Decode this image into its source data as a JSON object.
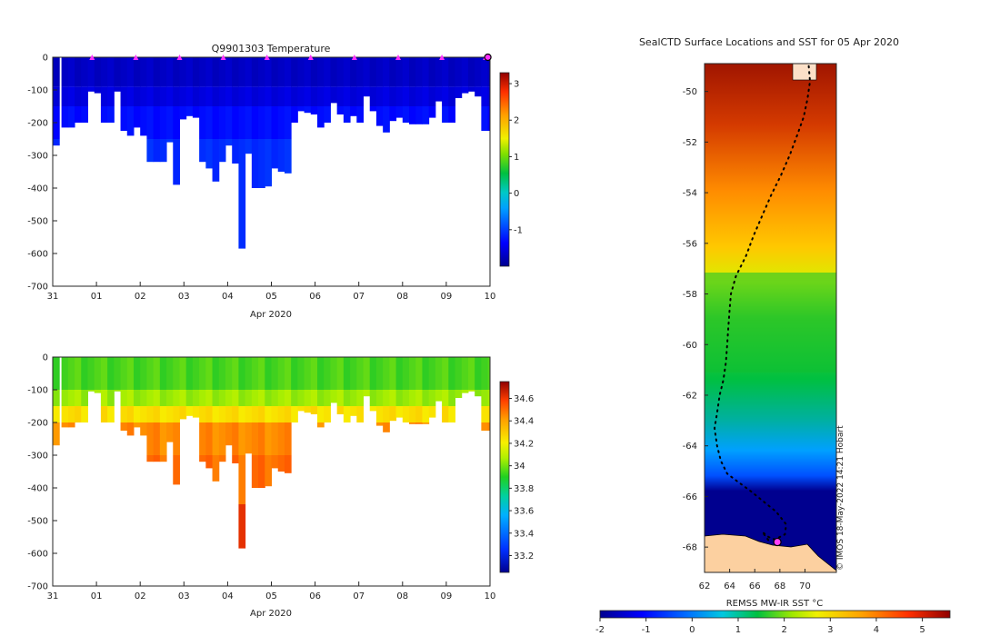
{
  "chart_data": [
    {
      "type": "heatmap",
      "title": "Q9901303  Temperature",
      "xlabel": "Apr 2020",
      "ylabel": "",
      "x_tick_labels": [
        "31",
        "01",
        "02",
        "03",
        "04",
        "05",
        "06",
        "07",
        "08",
        "09",
        "10"
      ],
      "ylim": [
        -700,
        0
      ],
      "y_ticks": [
        0,
        -100,
        -200,
        -300,
        -400,
        -500,
        -600,
        -700
      ],
      "colorbar": {
        "min": -2,
        "max": 3.3,
        "ticks": [
          3,
          2,
          1,
          0,
          -1
        ]
      },
      "profile_times_days": [
        0.9,
        1.9,
        2.9,
        3.9,
        4.9,
        5.9,
        6.9,
        7.9,
        8.9,
        9.9
      ],
      "profile_days": [
        0.0,
        0.2,
        0.35,
        0.5,
        0.65,
        0.8,
        0.95,
        1.1,
        1.25,
        1.4,
        1.55,
        1.7,
        1.85,
        2.0,
        2.15,
        2.3,
        2.45,
        2.6,
        2.75,
        2.9,
        3.05,
        3.2,
        3.35,
        3.5,
        3.65,
        3.8,
        3.95,
        4.1,
        4.25,
        4.4,
        4.55,
        4.7,
        4.85,
        5.0,
        5.15,
        5.3,
        5.45,
        5.6,
        5.75,
        5.9,
        6.05,
        6.2,
        6.35,
        6.5,
        6.65,
        6.8,
        6.95,
        7.1,
        7.25,
        7.4,
        7.55,
        7.7,
        7.85,
        8.0,
        8.15,
        8.3,
        8.45,
        8.6,
        8.75,
        8.9,
        9.05,
        9.2,
        9.35,
        9.5,
        9.65,
        9.8,
        9.95
      ],
      "profile_max_depths": [
        270,
        215,
        215,
        200,
        200,
        105,
        110,
        200,
        200,
        105,
        225,
        240,
        215,
        240,
        320,
        320,
        320,
        260,
        390,
        190,
        180,
        185,
        320,
        340,
        380,
        320,
        270,
        325,
        585,
        295,
        400,
        400,
        395,
        340,
        350,
        355,
        200,
        165,
        170,
        175,
        215,
        200,
        140,
        175,
        200,
        180,
        200,
        120,
        165,
        210,
        230,
        195,
        185,
        200,
        205,
        205,
        205,
        185,
        135,
        200,
        200,
        125,
        110,
        105,
        120,
        225,
        225
      ],
      "values_temperature": [
        -1.6,
        -1.5,
        -1.7,
        -1.4,
        -1.3,
        -1.1
      ]
    },
    {
      "type": "heatmap",
      "title": "",
      "xlabel": "Apr 2020",
      "ylabel": "",
      "x_tick_labels": [
        "31",
        "01",
        "02",
        "03",
        "04",
        "05",
        "06",
        "07",
        "08",
        "09",
        "10"
      ],
      "ylim": [
        -700,
        0
      ],
      "y_ticks": [
        0,
        -100,
        -200,
        -300,
        -400,
        -500,
        -600,
        -700
      ],
      "colorbar": {
        "min": 33.05,
        "max": 34.75,
        "ticks": [
          "34.6",
          "34.4",
          "34.2",
          "34",
          "33.8",
          "33.6",
          "33.4",
          "33.2"
        ]
      },
      "salinity_layers": [
        [
          0,
          100,
          33.95
        ],
        [
          100,
          150,
          34.05
        ],
        [
          150,
          200,
          34.25
        ],
        [
          200,
          300,
          34.45
        ],
        [
          300,
          450,
          34.5
        ],
        [
          450,
          600,
          34.65
        ]
      ]
    },
    {
      "type": "heatmap",
      "title": "SealCTD Surface Locations and SST for 05 Apr 2020",
      "xlabel": "",
      "x_ticks": [
        62,
        64,
        66,
        68,
        70
      ],
      "xlim": [
        62,
        72.5
      ],
      "y_ticks": [
        -50,
        -52,
        -54,
        -56,
        -58,
        -60,
        -62,
        -64,
        -66,
        -68
      ],
      "ylim": [
        -69,
        -48.9
      ],
      "colorbar": {
        "label": "REMSS MW-IR SST °C",
        "min": -2,
        "max": 5.6,
        "ticks": [
          -2,
          -1,
          0,
          1,
          2,
          3,
          4,
          5
        ]
      },
      "watermark": "© IMOS 18-May-2022 14:21 Hobart",
      "track": [
        [
          70.3,
          -49.0
        ],
        [
          70.4,
          -49.6
        ],
        [
          70.2,
          -50.3
        ],
        [
          69.9,
          -51.0
        ],
        [
          69.4,
          -51.7
        ],
        [
          68.8,
          -52.5
        ],
        [
          68.1,
          -53.3
        ],
        [
          67.3,
          -54.1
        ],
        [
          66.6,
          -54.9
        ],
        [
          65.9,
          -55.7
        ],
        [
          65.3,
          -56.5
        ],
        [
          64.5,
          -57.3
        ],
        [
          64.1,
          -58.0
        ],
        [
          64.0,
          -58.6
        ],
        [
          63.9,
          -59.3
        ],
        [
          63.8,
          -60.0
        ],
        [
          63.7,
          -60.7
        ],
        [
          63.5,
          -61.4
        ],
        [
          63.2,
          -62.0
        ],
        [
          63.0,
          -62.7
        ],
        [
          62.8,
          -63.3
        ],
        [
          63.0,
          -64.0
        ],
        [
          63.3,
          -64.6
        ],
        [
          63.8,
          -65.1
        ],
        [
          64.6,
          -65.4
        ],
        [
          65.7,
          -65.8
        ],
        [
          66.7,
          -66.2
        ],
        [
          67.7,
          -66.6
        ],
        [
          68.5,
          -67.1
        ],
        [
          68.4,
          -67.5
        ],
        [
          67.6,
          -67.7
        ],
        [
          67.1,
          -67.6
        ],
        [
          66.6,
          -67.4
        ],
        [
          67.2,
          -67.8
        ]
      ],
      "final_location": [
        67.8,
        -67.8
      ]
    }
  ]
}
